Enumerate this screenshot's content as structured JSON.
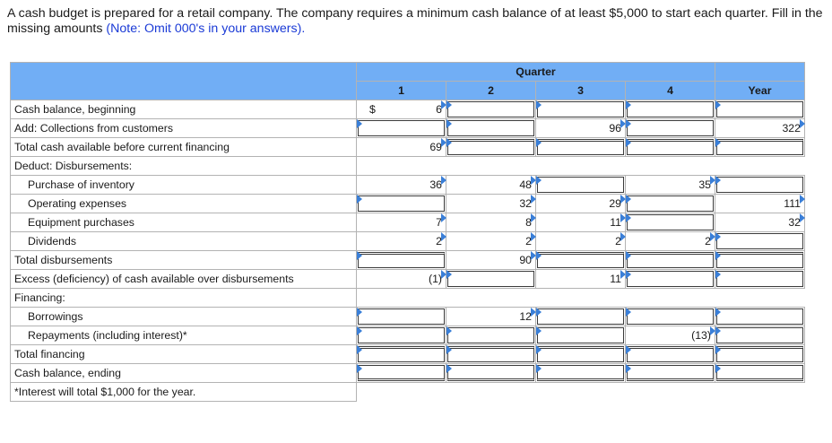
{
  "prompt": {
    "text": "A cash budget is prepared for a retail company. The company requires a minimum cash balance of at least $5,000 to start each quarter. Fill in the missing amounts ",
    "note": "(Note: Omit 000's in your answers)."
  },
  "table": {
    "group_header": "Quarter",
    "columns": [
      "1",
      "2",
      "3",
      "4",
      "Year"
    ],
    "currency_symbol": "$",
    "rows": [
      {
        "label": "Cash balance, beginning",
        "values": [
          "6",
          "",
          "",
          "",
          ""
        ]
      },
      {
        "label": "Add: Collections from customers",
        "values": [
          "",
          "",
          "96",
          "",
          "322"
        ]
      },
      {
        "label": "Total cash available before current financing",
        "values": [
          "69",
          "",
          "",
          "",
          ""
        ]
      },
      {
        "label": "Deduct: Disbursements:",
        "values": []
      },
      {
        "label": "Purchase of inventory",
        "values": [
          "36",
          "48",
          "",
          "35",
          ""
        ]
      },
      {
        "label": "Operating expenses",
        "values": [
          "",
          "32",
          "29",
          "",
          "111"
        ]
      },
      {
        "label": "Equipment purchases",
        "values": [
          "7",
          "8",
          "11",
          "",
          "32"
        ]
      },
      {
        "label": "Dividends",
        "values": [
          "2",
          "2",
          "2",
          "2",
          ""
        ]
      },
      {
        "label": "Total disbursements",
        "values": [
          "",
          "90",
          "",
          "",
          ""
        ]
      },
      {
        "label": "Excess (deficiency) of cash available over disbursements",
        "values": [
          "(1)",
          "",
          "11",
          "",
          ""
        ]
      },
      {
        "label": "Financing:",
        "values": []
      },
      {
        "label": "Borrowings",
        "values": [
          "",
          "12",
          "",
          "",
          ""
        ]
      },
      {
        "label": "Repayments (including interest)*",
        "values": [
          "",
          "",
          "",
          "(13)",
          ""
        ]
      },
      {
        "label": "Total financing",
        "values": [
          "",
          "",
          "",
          "",
          ""
        ]
      },
      {
        "label": "Cash balance, ending",
        "values": [
          "",
          "",
          "",
          "",
          ""
        ]
      }
    ],
    "footnote": "*Interest will total $1,000 for the year."
  }
}
